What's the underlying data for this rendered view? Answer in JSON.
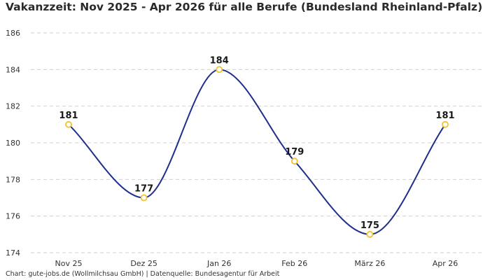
{
  "chart_data": {
    "type": "line",
    "title": "Vakanzzeit: Nov 2025 - Apr 2026 für alle Berufe (Bundesland Rheinland-Pfalz)",
    "categories": [
      "Nov 25",
      "Dez 25",
      "Jan 26",
      "Feb 26",
      "März 26",
      "Apr 26"
    ],
    "series": [
      {
        "values": [
          181,
          177,
          184,
          179,
          175,
          181
        ]
      }
    ],
    "data_labels": [
      "181",
      "177",
      "184",
      "179",
      "175",
      "181"
    ],
    "y_ticks": [
      174,
      176,
      178,
      180,
      182,
      184,
      186
    ],
    "ylim": [
      174,
      186
    ],
    "grid": "horizontal dashed",
    "line_color": "#1f2f8c",
    "marker_color": "#f2c230",
    "source": "Chart: gute-jobs.de (Wollmilchsau GmbH) | Datenquelle: Bundesagentur für Arbeit"
  }
}
